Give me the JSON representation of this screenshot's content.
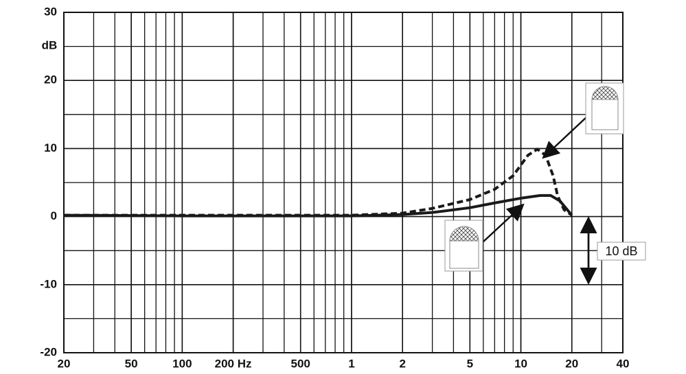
{
  "chart_data": {
    "type": "line",
    "log_x": true,
    "grid": true,
    "xlim": [
      20,
      40000
    ],
    "ylim": [
      -20,
      30
    ],
    "xticks": [
      20,
      50,
      100,
      {
        "value": 200,
        "label": "200 Hz"
      },
      500,
      {
        "value": 1000,
        "label": "1"
      },
      {
        "value": 2000,
        "label": "2"
      },
      {
        "value": 5000,
        "label": "5"
      },
      {
        "value": 10000,
        "label": "10"
      },
      {
        "value": 20000,
        "label": "20"
      },
      {
        "value": 40000,
        "label": "40"
      }
    ],
    "yticks": [
      -20,
      -10,
      0,
      10,
      20,
      30
    ],
    "ylabel": "dB",
    "annotation": "10 dB",
    "series": [
      {
        "color": "#1a1a1a",
        "dashed": false,
        "x": [
          20,
          100,
          1000,
          2000,
          3000,
          5000,
          7000,
          10000,
          13000,
          15000,
          17000,
          20000
        ],
        "values": [
          0.2,
          0.1,
          0.1,
          0.3,
          0.6,
          1.3,
          2.0,
          2.7,
          3.1,
          3.1,
          2.3,
          0.2
        ]
      },
      {
        "color": "#1a1a1a",
        "dashed": true,
        "x": [
          20,
          1000,
          2000,
          3000,
          5000,
          7000,
          9000,
          11000,
          12500,
          14000,
          15500,
          16500,
          18000,
          20000
        ],
        "values": [
          0.2,
          0.2,
          0.5,
          1.2,
          2.5,
          4.0,
          6.0,
          9.0,
          9.9,
          9.0,
          6.0,
          3.0,
          1.0,
          0.2
        ]
      }
    ]
  }
}
